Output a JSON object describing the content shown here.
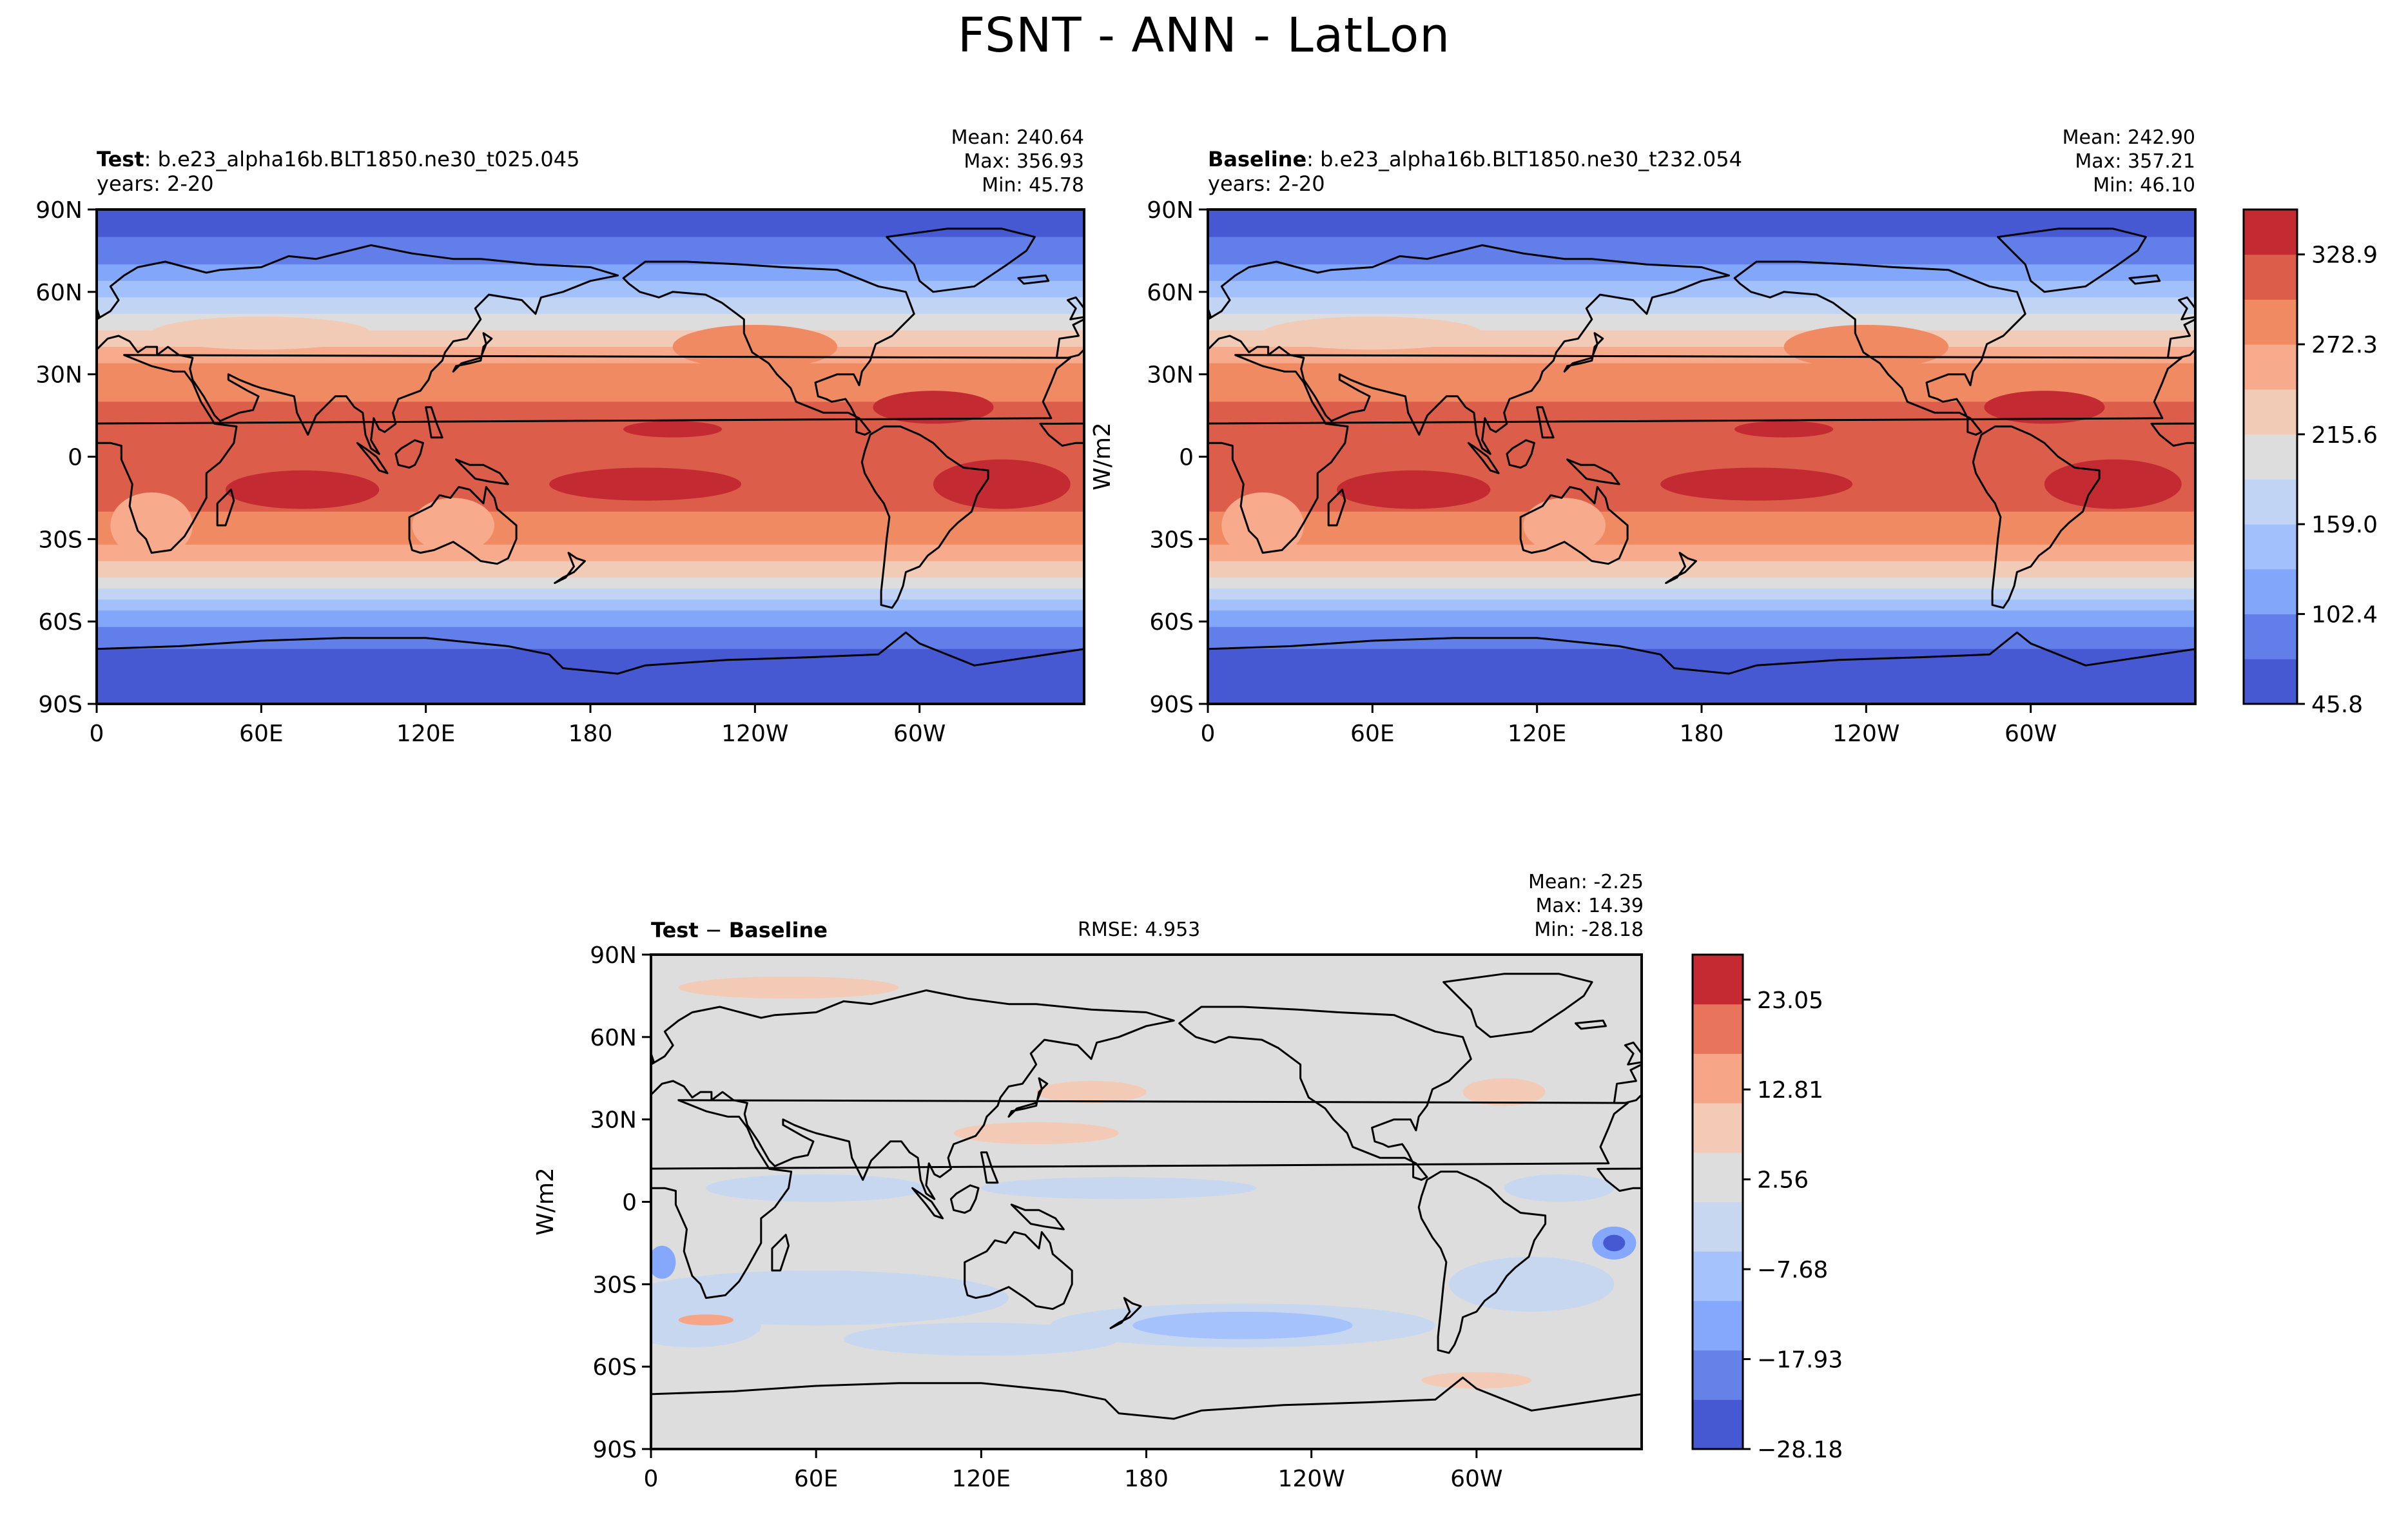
{
  "figure": {
    "title": "FSNT - ANN - LatLon",
    "colors": {
      "ocean_base": "#dddddd",
      "coast": "#000000",
      "abs_levels": [
        "#4658d2",
        "#627ee8",
        "#82a6fa",
        "#a2c0fc",
        "#c2d4f4",
        "#dddddd",
        "#f2cbb7",
        "#f7aa8c",
        "#ef8a62",
        "#dc5d4a",
        "#c32a31"
      ],
      "diff_levels": [
        "#4658d2",
        "#6482e7",
        "#85a8fc",
        "#a6c2fd",
        "#c7d7f0",
        "#dddddd",
        "#f2cab5",
        "#f6a586",
        "#e7745b",
        "#c32a31"
      ]
    }
  },
  "panels": {
    "test": {
      "name": "Test",
      "sep": ":",
      "run": "b.e23_alpha16b.BLT1850.ne30_t025.045",
      "years": "years: 2-20",
      "mean": "Mean: 240.64",
      "max": "Max: 356.93",
      "min": "Min: 45.78"
    },
    "baseline": {
      "name": "Baseline",
      "sep": ":",
      "run": "b.e23_alpha16b.BLT1850.ne30_t232.054",
      "years": "years: 2-20",
      "mean": "Mean: 242.90",
      "max": "Max: 357.21",
      "min": "Min: 46.10"
    },
    "diff": {
      "name_a": "Test",
      "dash": "−",
      "name_b": "Baseline",
      "rmse": "RMSE: 4.953",
      "mean": "Mean: -2.25",
      "max": "Max: 14.39",
      "min": "Min: -28.18"
    }
  },
  "chart_data": [
    {
      "type": "heatmap",
      "panel": "test",
      "projection": "lat-lon",
      "x_ticks": [
        "0",
        "60E",
        "120E",
        "180",
        "120W",
        "60W"
      ],
      "y_ticks": [
        "90N",
        "60N",
        "30N",
        "0",
        "30S",
        "60S",
        "90S"
      ],
      "xlim": [
        0,
        360
      ],
      "ylim": [
        -90,
        90
      ],
      "units": "W/m2",
      "zonal_mean_profile": {
        "lat": [
          90,
          75,
          60,
          45,
          30,
          15,
          0,
          -15,
          -30,
          -45,
          -60,
          -75,
          -90
        ],
        "values": [
          55,
          85,
          150,
          225,
          285,
          310,
          300,
          310,
          285,
          210,
          110,
          55,
          50
        ]
      }
    },
    {
      "type": "heatmap",
      "panel": "baseline",
      "projection": "lat-lon",
      "x_ticks": [
        "0",
        "60E",
        "120E",
        "180",
        "120W",
        "60W"
      ],
      "y_ticks": [
        "90N",
        "60N",
        "30N",
        "0",
        "30S",
        "60S",
        "90S"
      ],
      "xlim": [
        0,
        360
      ],
      "ylim": [
        -90,
        90
      ],
      "units": "W/m2",
      "colorbar": {
        "label": "W/m2",
        "ticks": [
          "45.8",
          "102.4",
          "159.0",
          "215.6",
          "272.3",
          "328.9"
        ],
        "tick_values": [
          45.8,
          102.4,
          159.0,
          215.6,
          272.3,
          328.9
        ],
        "range": [
          45.8,
          357.21
        ]
      }
    },
    {
      "type": "heatmap",
      "panel": "diff",
      "projection": "lat-lon",
      "x_ticks": [
        "0",
        "60E",
        "120E",
        "180",
        "120W",
        "60W"
      ],
      "y_ticks": [
        "90N",
        "60N",
        "30N",
        "0",
        "30S",
        "60S",
        "90S"
      ],
      "xlim": [
        0,
        360
      ],
      "ylim": [
        -90,
        90
      ],
      "units": "W/m2",
      "colorbar": {
        "label": "W/m2",
        "ticks": [
          "−28.18",
          "−17.93",
          "−7.68",
          "2.56",
          "12.81",
          "23.05"
        ],
        "tick_values": [
          -28.18,
          -17.93,
          -7.68,
          2.56,
          12.81,
          23.05
        ],
        "range": [
          -28.18,
          28.18
        ]
      }
    }
  ]
}
